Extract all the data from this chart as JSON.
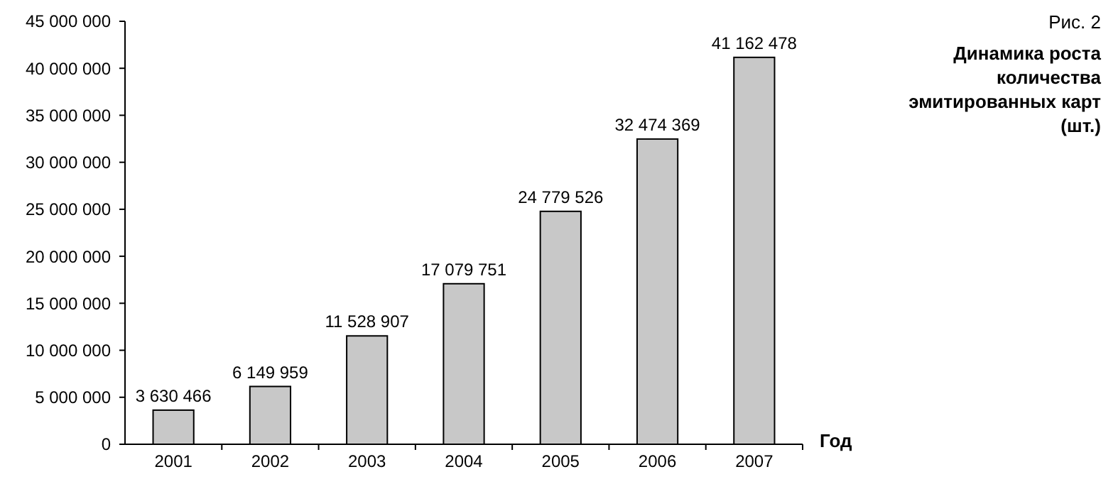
{
  "chart_data": {
    "type": "bar",
    "title": "Рис. 2",
    "subtitle": "Динамика роста количества эмитированных карт (шт.)",
    "xlabel": "Год",
    "categories": [
      "2001",
      "2002",
      "2003",
      "2004",
      "2005",
      "2006",
      "2007"
    ],
    "values": [
      3630466,
      6149959,
      11528907,
      17079751,
      24779526,
      32474369,
      41162478
    ],
    "value_labels": [
      "3 630 466",
      "6 149 959",
      "11 528 907",
      "17 079 751",
      "24 779 526",
      "32 474 369",
      "41 162 478"
    ],
    "color": "#c8c8c8",
    "ylim": [
      0,
      45000000
    ],
    "yticks": [
      {
        "value": 0,
        "label": "0"
      },
      {
        "value": 5000000,
        "label": "5 000 000"
      },
      {
        "value": 10000000,
        "label": "10 000 000"
      },
      {
        "value": 15000000,
        "label": "15 000 000"
      },
      {
        "value": 20000000,
        "label": "20 000 000"
      },
      {
        "value": 25000000,
        "label": "25 000 000"
      },
      {
        "value": 30000000,
        "label": "30 000 000"
      },
      {
        "value": 35000000,
        "label": "35 000 000"
      },
      {
        "value": 40000000,
        "label": "40 000 000"
      },
      {
        "value": 45000000,
        "label": "45 000 000"
      }
    ],
    "grid": false
  }
}
